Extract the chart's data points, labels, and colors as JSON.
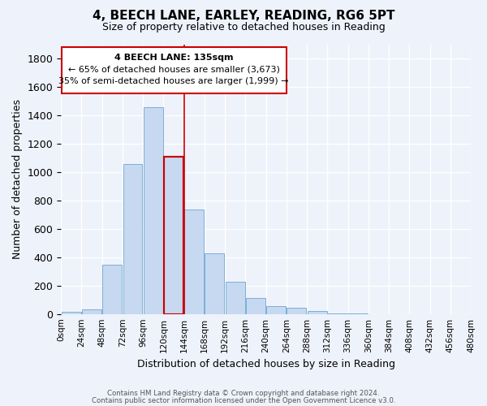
{
  "title": "4, BEECH LANE, EARLEY, READING, RG6 5PT",
  "subtitle": "Size of property relative to detached houses in Reading",
  "xlabel": "Distribution of detached houses by size in Reading",
  "ylabel": "Number of detached properties",
  "bar_labels": [
    "0sqm",
    "24sqm",
    "48sqm",
    "72sqm",
    "96sqm",
    "120sqm",
    "144sqm",
    "168sqm",
    "192sqm",
    "216sqm",
    "240sqm",
    "264sqm",
    "288sqm",
    "312sqm",
    "336sqm",
    "360sqm",
    "384sqm",
    "408sqm",
    "432sqm",
    "456sqm"
  ],
  "tick_labels": [
    "0sqm",
    "24sqm",
    "48sqm",
    "72sqm",
    "96sqm",
    "120sqm",
    "144sqm",
    "168sqm",
    "192sqm",
    "216sqm",
    "240sqm",
    "264sqm",
    "288sqm",
    "312sqm",
    "336sqm",
    "360sqm",
    "384sqm",
    "408sqm",
    "432sqm",
    "456sqm",
    "480sqm"
  ],
  "bar_values": [
    15,
    30,
    350,
    1060,
    1460,
    1110,
    735,
    430,
    225,
    110,
    55,
    45,
    20,
    5,
    2,
    1,
    0,
    0,
    0,
    0
  ],
  "bar_color": "#c6d9f1",
  "bar_edge_color": "#7bafd4",
  "highlight_bar_index": 5,
  "highlight_bar_edge_color": "#cc0000",
  "annotation_line1": "4 BEECH LANE: 135sqm",
  "annotation_line2": "← 65% of detached houses are smaller (3,673)",
  "annotation_line3": "35% of semi-detached houses are larger (1,999) →",
  "vline_x": 5.5,
  "ylim": [
    0,
    1900
  ],
  "yticks": [
    0,
    200,
    400,
    600,
    800,
    1000,
    1200,
    1400,
    1600,
    1800
  ],
  "footer_line1": "Contains HM Land Registry data © Crown copyright and database right 2024.",
  "footer_line2": "Contains public sector information licensed under the Open Government Licence v3.0.",
  "background_color": "#eef2fb",
  "plot_background_color": "#eef2fb"
}
